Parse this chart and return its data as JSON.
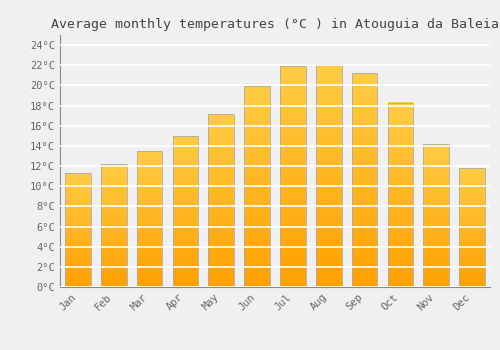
{
  "title": "Average monthly temperatures (°C ) in Atouguia da Baleia",
  "months": [
    "Jan",
    "Feb",
    "Mar",
    "Apr",
    "May",
    "Jun",
    "Jul",
    "Aug",
    "Sep",
    "Oct",
    "Nov",
    "Dec"
  ],
  "temperatures": [
    11.3,
    12.2,
    13.5,
    15.0,
    17.2,
    19.9,
    21.9,
    22.1,
    21.2,
    18.3,
    14.2,
    11.8
  ],
  "bar_color_top": "#FFB300",
  "bar_color_bottom": "#FFA000",
  "bar_color_mid": "#FFCC44",
  "bar_edge_color": "#AAAAAA",
  "ylim": [
    0,
    25
  ],
  "ytick_step": 2,
  "background_color": "#f0f0f0",
  "plot_bg_color": "#f0f0f0",
  "grid_color": "#ffffff",
  "title_fontsize": 9.5,
  "tick_fontsize": 7.5,
  "font_family": "monospace"
}
